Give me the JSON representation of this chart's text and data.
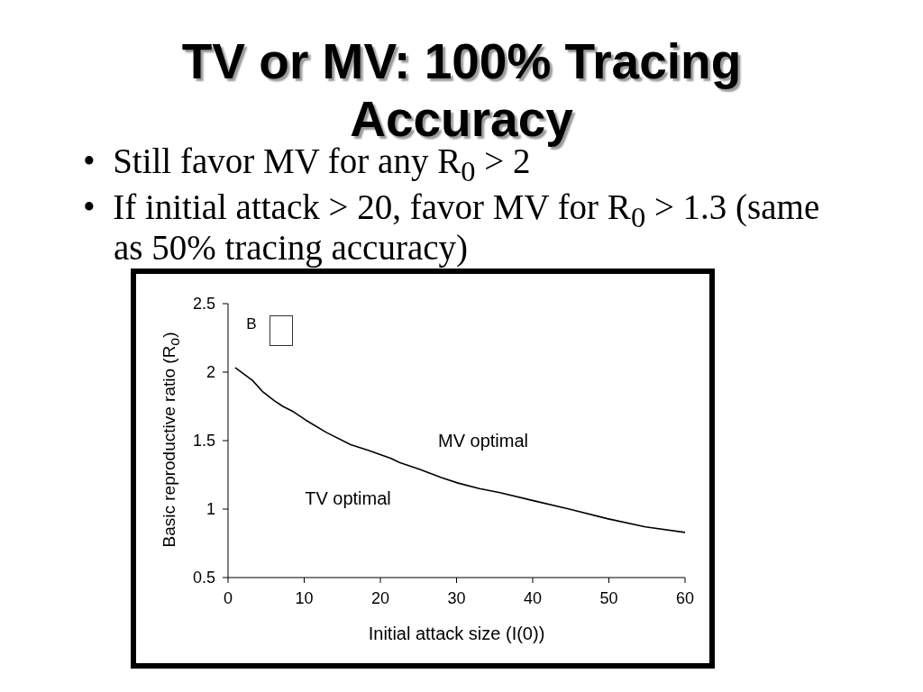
{
  "chart_data": {
    "type": "line",
    "title": "TV or MV: 100% Tracing Accuracy",
    "xlabel": "Initial attack size (I(0))",
    "ylabel": "Basic reproductive ratio (R$_{o}$)",
    "annotations": [
      "• Still favor MV for any R$_{0}$ > 2",
      "• If initial attack > 20, favor MV for R$_{0}$ > 1.3 (same as 50% tracing accuracy)",
      "B",
      "MV optimal",
      "TV optimal"
    ],
    "x": [
      1,
      3.2,
      4.5,
      6.1,
      7.2,
      8.6,
      10.2,
      12.9,
      16.1,
      18.4,
      21.4,
      22.5,
      25.2,
      28,
      30.2,
      33,
      35.7,
      40.2,
      44.8,
      49.8,
      54.8,
      60
    ],
    "values": [
      2.03,
      1.94,
      1.86,
      1.79,
      1.75,
      1.71,
      1.65,
      1.56,
      1.47,
      1.43,
      1.37,
      1.34,
      1.29,
      1.23,
      1.19,
      1.15,
      1.12,
      1.06,
      1.0,
      0.93,
      0.87,
      0.83
    ],
    "color": "#000000",
    "xlim": [
      0,
      60
    ],
    "ylim": [
      0.5,
      2.5
    ],
    "xticks": [
      0,
      10,
      20,
      30,
      40,
      50,
      60
    ],
    "yticks": [
      0.5,
      1,
      1.5,
      2,
      2.5
    ],
    "marker": "none"
  }
}
